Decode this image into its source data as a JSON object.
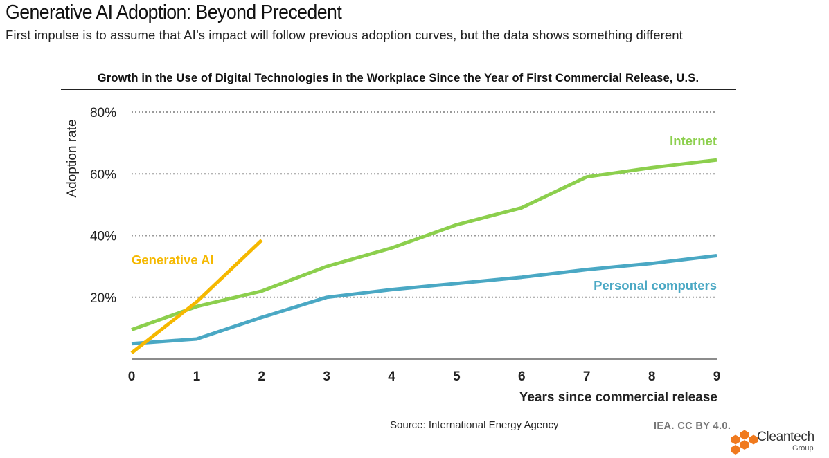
{
  "header": {
    "title": "Generative AI Adoption: Beyond Precedent",
    "subtitle": "First impulse is to assume that AI’s impact will follow previous adoption curves, but the data shows something different"
  },
  "chart_data": {
    "type": "line",
    "title": "Growth in the Use of Digital Technologies in the Workplace Since the Year of First Commercial Release, U.S.",
    "xlabel": "Years since commercial release",
    "ylabel": "Adoption rate",
    "xlim": [
      0,
      9
    ],
    "ylim": [
      0,
      80
    ],
    "x_ticks": [
      "0",
      "1",
      "2",
      "3",
      "4",
      "5",
      "6",
      "7",
      "8",
      "9"
    ],
    "y_ticks": [
      {
        "value": 20,
        "label": "20%"
      },
      {
        "value": 40,
        "label": "40%"
      },
      {
        "value": 60,
        "label": "60%"
      },
      {
        "value": 80,
        "label": "80%"
      }
    ],
    "grid": "horizontal dotted",
    "series": [
      {
        "name": "Internet",
        "color": "#8ccf4d",
        "x": [
          0,
          1,
          2,
          3,
          4,
          5,
          6,
          7,
          8,
          9
        ],
        "values": [
          9.5,
          17,
          22,
          30,
          36,
          43.5,
          49,
          59,
          62,
          64.5
        ]
      },
      {
        "name": "Personal computers",
        "color": "#4aa8c4",
        "x": [
          0,
          1,
          2,
          3,
          4,
          5,
          6,
          7,
          8,
          9
        ],
        "values": [
          5,
          6.5,
          13.5,
          20,
          22.5,
          24.5,
          26.5,
          29,
          31,
          33.5
        ]
      },
      {
        "name": "Generative AI",
        "color": "#f5b800",
        "x": [
          0,
          1,
          2
        ],
        "values": [
          2,
          18.5,
          38.5
        ]
      }
    ]
  },
  "footer": {
    "source": "Source: International Energy Agency",
    "license": "IEA. CC BY 4.0.",
    "logo_name": "Cleantech",
    "logo_sub": "Group",
    "logo_color": "#f07a1e"
  }
}
